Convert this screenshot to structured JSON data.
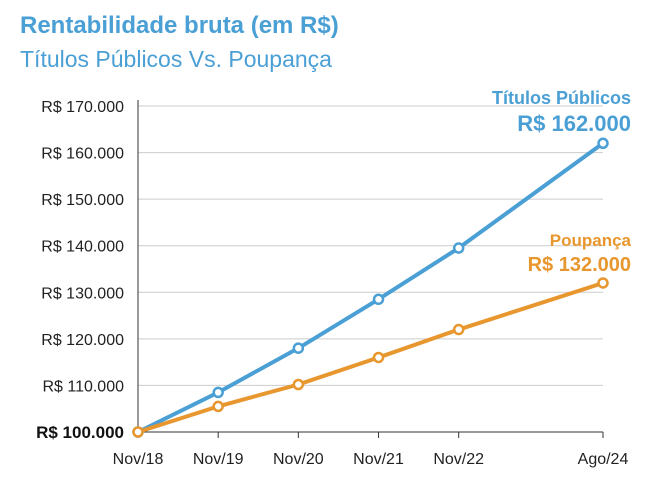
{
  "header": {
    "title": "Rentabilidade bruta (em R$)",
    "subtitle": "Títulos Públicos Vs. Poupança"
  },
  "colors": {
    "title": "#4a9fd5",
    "titulos": "#4a9fd5",
    "poupanca": "#e8962e",
    "grid": "#cccccc",
    "axis": "#333333"
  },
  "chart_data": {
    "type": "line",
    "title": "Rentabilidade bruta (em R$)",
    "subtitle": "Títulos Públicos Vs. Poupança",
    "categories": [
      "Nov/18",
      "Nov/19",
      "Nov/20",
      "Nov/21",
      "Nov/22",
      "Ago/24"
    ],
    "x_positions": [
      0,
      1,
      2,
      3,
      4,
      5.8
    ],
    "ylim": [
      100000,
      170000
    ],
    "yticks": [
      {
        "value": 100000,
        "label": "R$ 100.000"
      },
      {
        "value": 110000,
        "label": "R$ 110.000"
      },
      {
        "value": 120000,
        "label": "R$ 120.000"
      },
      {
        "value": 130000,
        "label": "R$ 130.000"
      },
      {
        "value": 140000,
        "label": "R$ 140.000"
      },
      {
        "value": 150000,
        "label": "R$ 150.000"
      },
      {
        "value": 160000,
        "label": "R$ 160.000"
      },
      {
        "value": 170000,
        "label": "R$ 170.000"
      }
    ],
    "grid": true,
    "series": [
      {
        "name": "Títulos Públicos",
        "end_label": "R$ 162.000",
        "color": "#4a9fd5",
        "values": [
          100000,
          108500,
          118000,
          128500,
          139500,
          162000
        ]
      },
      {
        "name": "Poupança",
        "end_label": "R$ 132.000",
        "color": "#e8962e",
        "values": [
          100000,
          105500,
          110200,
          116000,
          122000,
          132000
        ]
      }
    ]
  }
}
